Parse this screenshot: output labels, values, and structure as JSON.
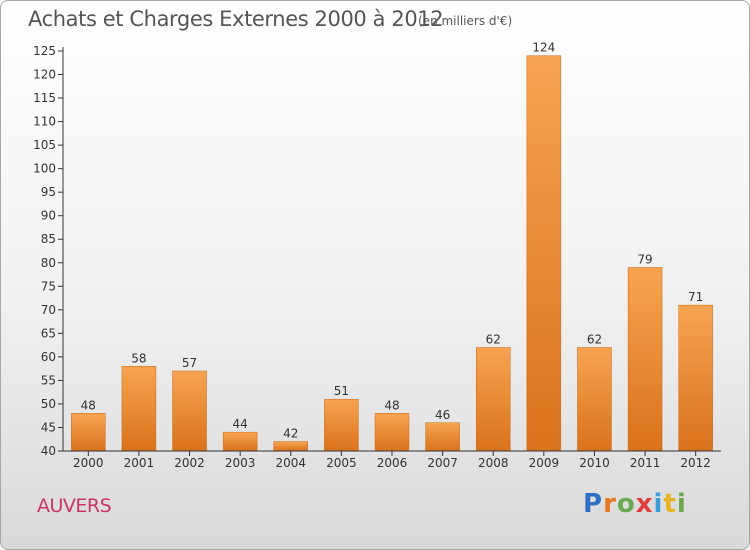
{
  "header": {
    "title": "Achats et Charges Externes 2000 à 2012",
    "unit_note": "(en milliers d'€)"
  },
  "footer": {
    "location": "AUVERS",
    "logo": {
      "text": "Proxiti",
      "letters": [
        {
          "ch": "P",
          "color": "#2f6fc4"
        },
        {
          "ch": "r",
          "color": "#e87722"
        },
        {
          "ch": "o",
          "color": "#6aa84f"
        },
        {
          "ch": "x",
          "color": "#e03c3c"
        },
        {
          "ch": "i",
          "color": "#3d9bd8"
        },
        {
          "ch": "t",
          "color": "#e8b422"
        },
        {
          "ch": "i",
          "color": "#6aa84f"
        }
      ]
    }
  },
  "colors": {
    "bar_light": "#f7a452",
    "bar_dark": "#d9721c",
    "axis": "#333333",
    "label": "#333333"
  },
  "chart_data": {
    "type": "bar",
    "title": "Achats et Charges Externes 2000 à 2012",
    "subtitle": "(en milliers d'€)",
    "categories": [
      "2000",
      "2001",
      "2002",
      "2003",
      "2004",
      "2005",
      "2006",
      "2007",
      "2008",
      "2009",
      "2010",
      "2011",
      "2012"
    ],
    "values": [
      48,
      58,
      57,
      44,
      42,
      51,
      48,
      46,
      62,
      124,
      62,
      79,
      71
    ],
    "ylim": [
      40,
      125
    ],
    "ytick_step": 5,
    "grid": false,
    "legend": "none",
    "data_labels": true
  }
}
